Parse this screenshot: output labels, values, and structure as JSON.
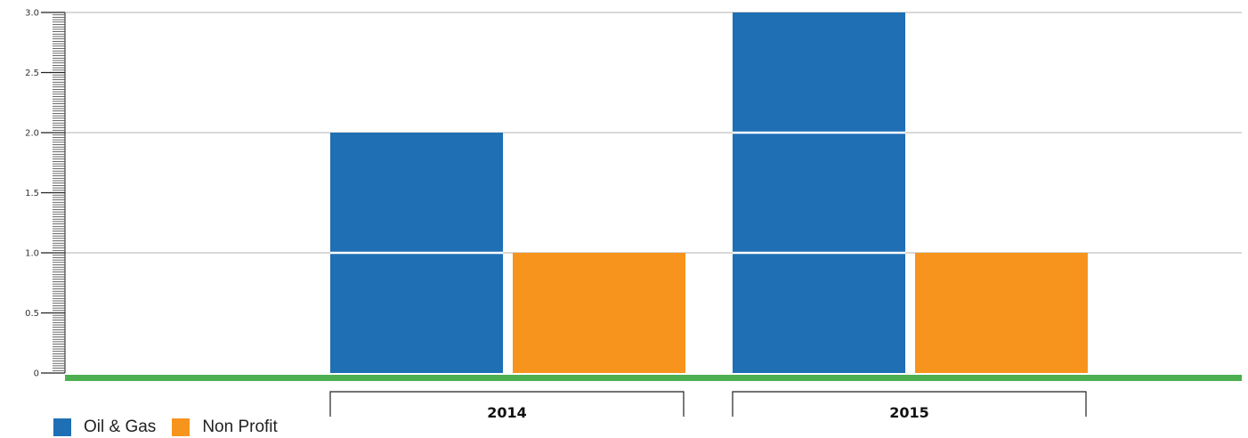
{
  "chart_data": {
    "type": "bar",
    "categories": [
      "2014",
      "2015"
    ],
    "series": [
      {
        "name": "Oil & Gas",
        "color": "#1f6fb5",
        "values": [
          2,
          3
        ]
      },
      {
        "name": "Non Profit",
        "color": "#f7941d",
        "values": [
          1,
          1
        ]
      }
    ],
    "y_ticks": [
      "0",
      "0.5",
      "1.0",
      "1.5",
      "2.0",
      "2.5",
      "3.0"
    ],
    "ylim": [
      0,
      3
    ],
    "grid": true,
    "baseline_color": "#4caf50",
    "legend_position": "bottom-left"
  }
}
